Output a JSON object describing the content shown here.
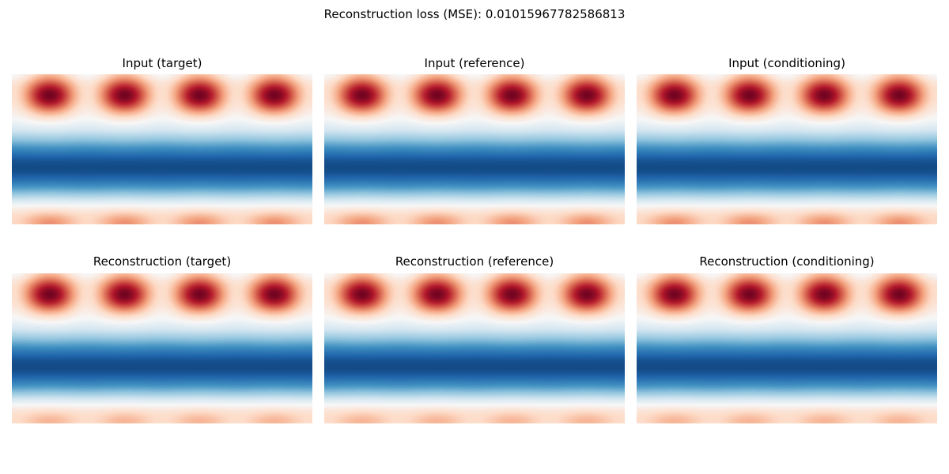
{
  "figure": {
    "title": "Reconstruction loss (MSE): 0.01015967782586813"
  },
  "colormap": {
    "name": "RdBu_r",
    "colors": [
      "#053061",
      "#2166ac",
      "#4393c3",
      "#92c5de",
      "#d1e5f0",
      "#f7f7f7",
      "#fddbc7",
      "#f4a582",
      "#d6604d",
      "#b2182b",
      "#67001f"
    ]
  },
  "chart_data": [
    {
      "type": "heatmap",
      "title": "Input (target)",
      "description": "Smooth 2D field: four dark-red blobs along the top, deep-blue band through the middle, light band at bottom",
      "periods_across": 4,
      "colormap": "RdBu_r"
    },
    {
      "type": "heatmap",
      "title": "Input (reference)",
      "periods_across": 4,
      "colormap": "RdBu_r"
    },
    {
      "type": "heatmap",
      "title": "Input (conditioning)",
      "periods_across": 4,
      "colormap": "RdBu_r"
    },
    {
      "type": "heatmap",
      "title": "Reconstruction (target)",
      "periods_across": 4,
      "colormap": "RdBu_r"
    },
    {
      "type": "heatmap",
      "title": "Reconstruction (reference)",
      "periods_across": 4,
      "colormap": "RdBu_r"
    },
    {
      "type": "heatmap",
      "title": "Reconstruction (conditioning)",
      "periods_across": 4,
      "colormap": "RdBu_r"
    }
  ]
}
